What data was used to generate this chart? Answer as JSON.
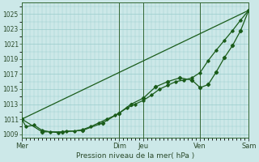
{
  "xlabel": "Pression niveau de la mer( hPa )",
  "bg_color": "#cce8e8",
  "grid_color": "#99cccc",
  "line_color": "#1a5c1a",
  "marker_color": "#1a5c1a",
  "ylim": [
    1008.5,
    1026.5
  ],
  "yticks": [
    1009,
    1011,
    1013,
    1015,
    1017,
    1019,
    1021,
    1023,
    1025
  ],
  "day_labels": [
    "Mer",
    "Dim",
    "Jeu",
    "Ven",
    "Sam"
  ],
  "day_positions": [
    0,
    24,
    30,
    44,
    56
  ],
  "vline_positions": [
    0,
    24,
    30,
    44,
    56
  ],
  "xlim": [
    0,
    56
  ],
  "series1_x": [
    0,
    1,
    3,
    5,
    7,
    9,
    11,
    13,
    15,
    17,
    19,
    21,
    23,
    24,
    26,
    28,
    30,
    32,
    34,
    36,
    38,
    40,
    42,
    44,
    46,
    48,
    50,
    52,
    54,
    56
  ],
  "series1_y": [
    1011,
    1010,
    1010.2,
    1009.5,
    1009.3,
    1009.2,
    1009.4,
    1009.4,
    1009.6,
    1010.0,
    1010.5,
    1011.0,
    1011.5,
    1011.8,
    1012.5,
    1013.0,
    1013.5,
    1014.2,
    1015.0,
    1015.5,
    1016.0,
    1016.2,
    1016.5,
    1017.2,
    1018.8,
    1020.2,
    1021.5,
    1022.8,
    1024.2,
    1025.5
  ],
  "series2_x": [
    0,
    5,
    10,
    15,
    20,
    24,
    27,
    30,
    33,
    36,
    39,
    42,
    44,
    46,
    48,
    50,
    52,
    54,
    56
  ],
  "series2_y": [
    1011,
    1009.3,
    1009.3,
    1009.5,
    1010.5,
    1011.8,
    1013.0,
    1013.8,
    1015.3,
    1016.0,
    1016.5,
    1016.2,
    1015.2,
    1015.6,
    1017.3,
    1019.2,
    1020.8,
    1022.8,
    1025.5
  ],
  "series3_x": [
    0,
    56
  ],
  "series3_y": [
    1011,
    1025.5
  ]
}
